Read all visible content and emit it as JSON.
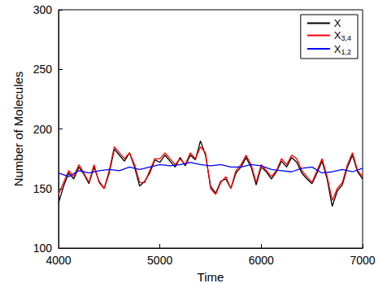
{
  "chart_data": {
    "type": "line",
    "x_label": "Time",
    "y_label": "Number of Molecules",
    "xlim": [
      4000,
      7000
    ],
    "xticks": [
      4000,
      5000,
      6000,
      7000
    ],
    "ylim": [
      100,
      300
    ],
    "yticks": [
      100,
      150,
      200,
      250,
      300
    ],
    "grid": false,
    "legend": "upper right",
    "line_style": "solid",
    "series": [
      {
        "name": "X",
        "color": "#000000",
        "x": [
          4000,
          4050,
          4100,
          4150,
          4200,
          4250,
          4300,
          4350,
          4400,
          4450,
          4500,
          4550,
          4600,
          4650,
          4700,
          4750,
          4800,
          4850,
          4900,
          4950,
          5000,
          5050,
          5100,
          5150,
          5200,
          5250,
          5300,
          5350,
          5400,
          5450,
          5500,
          5550,
          5600,
          5650,
          5700,
          5750,
          5800,
          5850,
          5900,
          5950,
          6000,
          6050,
          6100,
          6150,
          6200,
          6250,
          6300,
          6350,
          6400,
          6450,
          6500,
          6550,
          6600,
          6650,
          6700,
          6750,
          6800,
          6850,
          6900,
          6950,
          7000
        ],
        "values": [
          138,
          152,
          163,
          158,
          168,
          162,
          154,
          168,
          156,
          150,
          163,
          183,
          178,
          173,
          180,
          168,
          152,
          156,
          163,
          174,
          172,
          178,
          173,
          168,
          176,
          169,
          178,
          174,
          190,
          178,
          152,
          146,
          156,
          158,
          150,
          163,
          168,
          176,
          168,
          153,
          168,
          164,
          158,
          164,
          173,
          168,
          176,
          172,
          163,
          158,
          154,
          163,
          173,
          158,
          135,
          148,
          153,
          168,
          178,
          164,
          158
        ]
      },
      {
        "name": "X3,4",
        "color": "#ff0000",
        "x": [
          4000,
          4050,
          4100,
          4150,
          4200,
          4250,
          4300,
          4350,
          4400,
          4450,
          4500,
          4550,
          4600,
          4650,
          4700,
          4750,
          4800,
          4850,
          4900,
          4950,
          5000,
          5050,
          5100,
          5150,
          5200,
          5250,
          5300,
          5350,
          5400,
          5450,
          5500,
          5550,
          5600,
          5650,
          5700,
          5750,
          5800,
          5850,
          5900,
          5950,
          6000,
          6050,
          6100,
          6150,
          6200,
          6250,
          6300,
          6350,
          6400,
          6450,
          6500,
          6550,
          6600,
          6650,
          6700,
          6750,
          6800,
          6850,
          6900,
          6950,
          7000
        ],
        "values": [
          145,
          155,
          165,
          160,
          170,
          163,
          155,
          170,
          155,
          150,
          165,
          185,
          180,
          175,
          180,
          170,
          155,
          155,
          165,
          175,
          175,
          180,
          175,
          170,
          175,
          170,
          180,
          175,
          185,
          180,
          150,
          145,
          155,
          160,
          150,
          165,
          170,
          178,
          170,
          155,
          170,
          165,
          160,
          165,
          175,
          170,
          178,
          175,
          165,
          160,
          155,
          165,
          175,
          160,
          140,
          150,
          155,
          170,
          180,
          165,
          160
        ]
      },
      {
        "name": "X1,2",
        "color": "#0000ff",
        "x": [
          4000,
          4100,
          4200,
          4300,
          4400,
          4500,
          4600,
          4700,
          4800,
          4900,
          5000,
          5100,
          5200,
          5300,
          5400,
          5500,
          5600,
          5700,
          5800,
          5900,
          6000,
          6100,
          6200,
          6300,
          6400,
          6500,
          6600,
          6700,
          6800,
          6900,
          7000
        ],
        "values": [
          163,
          160,
          165,
          163,
          165,
          166,
          165,
          168,
          166,
          168,
          170,
          169,
          170,
          172,
          170,
          169,
          170,
          168,
          168,
          170,
          169,
          166,
          165,
          164,
          167,
          168,
          163,
          164,
          166,
          164,
          167
        ]
      }
    ]
  }
}
